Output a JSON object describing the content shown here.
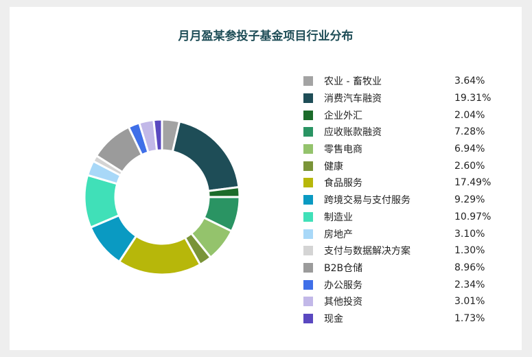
{
  "chart_data": {
    "type": "pie",
    "title": "月月盈某参投子基金项目行业分布",
    "legend_position": "right",
    "slices": [
      {
        "label": "农业 - 畜牧业",
        "value": 3.64,
        "value_label": "3.64%",
        "color": "#a3a3a3"
      },
      {
        "label": "消费汽车融资",
        "value": 19.31,
        "value_label": "19.31%",
        "color": "#1e4d57"
      },
      {
        "label": "企业外汇",
        "value": 2.04,
        "value_label": "2.04%",
        "color": "#1c6b2a"
      },
      {
        "label": "应收账款融资",
        "value": 7.28,
        "value_label": "7.28%",
        "color": "#2a9463"
      },
      {
        "label": "零售电商",
        "value": 6.94,
        "value_label": "6.94%",
        "color": "#94c36c"
      },
      {
        "label": "健康",
        "value": 2.6,
        "value_label": "2.60%",
        "color": "#7a9438"
      },
      {
        "label": "食品服务",
        "value": 17.49,
        "value_label": "17.49%",
        "color": "#b7b70a"
      },
      {
        "label": "跨境交易与支付服务",
        "value": 9.29,
        "value_label": "9.29%",
        "color": "#0a9ac2"
      },
      {
        "label": "制造业",
        "value": 10.97,
        "value_label": "10.97%",
        "color": "#40e0b8"
      },
      {
        "label": "房地产",
        "value": 3.1,
        "value_label": "3.10%",
        "color": "#a8d8f8"
      },
      {
        "label": "支付与数据解决方案",
        "value": 1.3,
        "value_label": "1.30%",
        "color": "#d4d4d4"
      },
      {
        "label": "B2B仓储",
        "value": 8.96,
        "value_label": "8.96%",
        "color": "#9b9b9b"
      },
      {
        "label": "办公服务",
        "value": 2.34,
        "value_label": "2.34%",
        "color": "#3f6fe8"
      },
      {
        "label": "其他投资",
        "value": 3.01,
        "value_label": "3.01%",
        "color": "#c2b8e8"
      },
      {
        "label": "现金",
        "value": 1.73,
        "value_label": "1.73%",
        "color": "#5a48c0"
      }
    ]
  }
}
